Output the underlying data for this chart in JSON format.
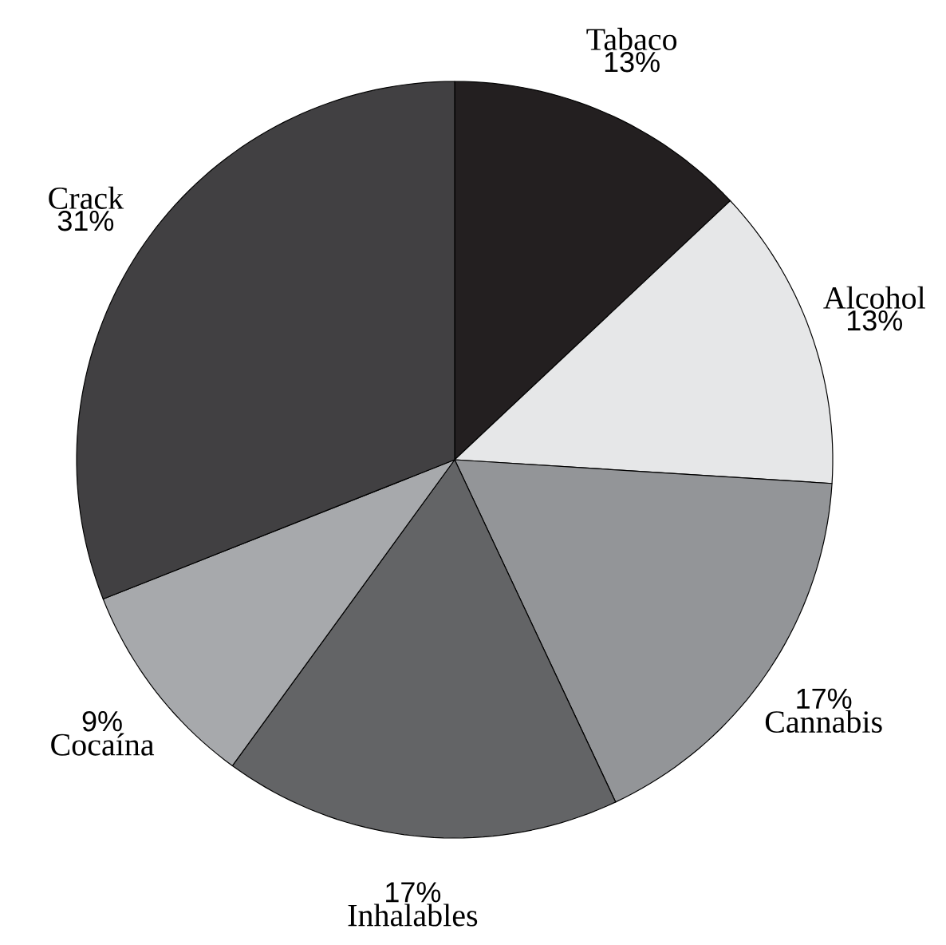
{
  "chart_data": {
    "type": "pie",
    "categories": [
      "Tabaco",
      "Alcohol",
      "Cannabis",
      "Inhalables",
      "Cocaína",
      "Crack"
    ],
    "values": [
      13,
      13,
      17,
      17,
      9,
      31
    ],
    "value_labels": [
      "13%",
      "13%",
      "17%",
      "17%",
      "9%",
      "31%"
    ],
    "colors": [
      "#231f20",
      "#e6e7e8",
      "#939598",
      "#636466",
      "#a7a9ac",
      "#414042"
    ]
  }
}
